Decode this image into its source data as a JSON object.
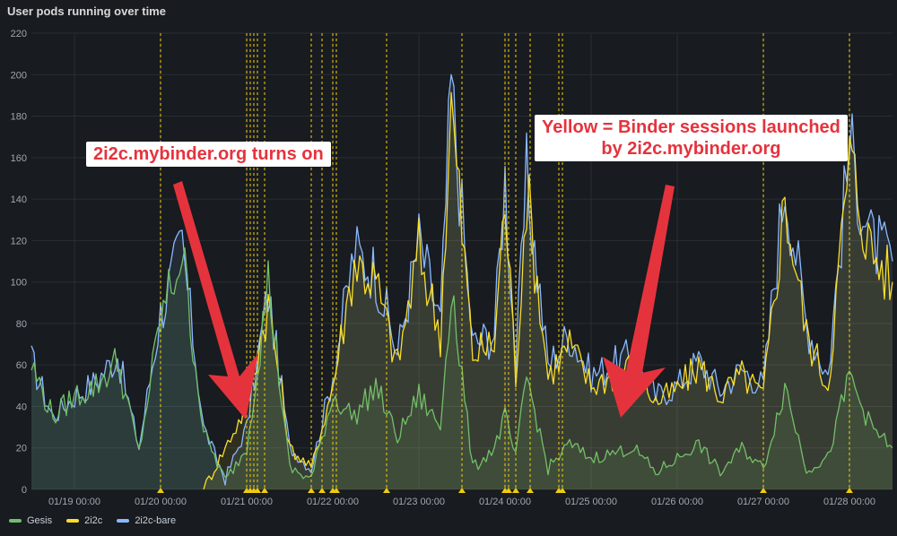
{
  "panel": {
    "title": "User pods running over time"
  },
  "annotations": [
    {
      "text": "2i2c.mybinder.org turns on"
    },
    {
      "text": "Yellow = Binder sessions launched\nby 2i2c.mybinder.org"
    }
  ],
  "legend": [
    {
      "label": "Gesis",
      "color": "#73bf69"
    },
    {
      "label": "2i2c",
      "color": "#fade2a"
    },
    {
      "label": "2i2c-bare",
      "color": "#8ab8ff"
    }
  ],
  "chart_data": {
    "type": "area",
    "x_start": "01/18 12:00",
    "x_end": "01/28 12:00",
    "x_ticks": [
      "01/19 00:00",
      "01/20 00:00",
      "01/21 00:00",
      "01/22 00:00",
      "01/23 00:00",
      "01/24 00:00",
      "01/25 00:00",
      "01/26 00:00",
      "01/27 00:00",
      "01/28 00:00"
    ],
    "ylim": [
      0,
      220
    ],
    "y_ticks": [
      0,
      20,
      40,
      60,
      80,
      100,
      120,
      140,
      160,
      180,
      200,
      220
    ],
    "grid": true,
    "legend_position": "bottom-left",
    "series": [
      {
        "name": "2i2c-bare",
        "color": "#8ab8ff",
        "points": [
          [
            "01/18 12:00",
            62
          ],
          [
            "01/18 18:00",
            35
          ],
          [
            "01/19 00:00",
            45
          ],
          [
            "01/19 06:00",
            52
          ],
          [
            "01/19 12:00",
            65
          ],
          [
            "01/19 18:00",
            20
          ],
          [
            "01/20 00:00",
            85
          ],
          [
            "01/20 06:00",
            118
          ],
          [
            "01/20 12:00",
            30
          ],
          [
            "01/20 18:00",
            5
          ],
          [
            "01/21 00:00",
            30
          ],
          [
            "01/21 06:00",
            95
          ],
          [
            "01/21 12:00",
            20
          ],
          [
            "01/21 18:00",
            10
          ],
          [
            "01/22 00:00",
            55
          ],
          [
            "01/22 06:00",
            115
          ],
          [
            "01/22 12:00",
            105
          ],
          [
            "01/22 18:00",
            65
          ],
          [
            "01/23 00:00",
            120
          ],
          [
            "01/23 06:00",
            80
          ],
          [
            "01/23 09:00",
            195
          ],
          [
            "01/23 15:00",
            70
          ],
          [
            "01/23 21:00",
            75
          ],
          [
            "01/24 00:00",
            150
          ],
          [
            "01/24 03:00",
            60
          ],
          [
            "01/24 06:00",
            150
          ],
          [
            "01/24 12:00",
            60
          ],
          [
            "01/24 18:00",
            75
          ],
          [
            "01/25 00:00",
            55
          ],
          [
            "01/25 12:00",
            65
          ],
          [
            "01/25 18:00",
            45
          ],
          [
            "01/26 00:00",
            50
          ],
          [
            "01/26 06:00",
            62
          ],
          [
            "01/26 12:00",
            48
          ],
          [
            "01/26 18:00",
            58
          ],
          [
            "01/27 00:00",
            50
          ],
          [
            "01/27 06:00",
            150
          ],
          [
            "01/27 12:00",
            80
          ],
          [
            "01/27 18:00",
            55
          ],
          [
            "01/28 00:00",
            165
          ],
          [
            "01/28 06:00",
            120
          ],
          [
            "01/28 12:00",
            110
          ]
        ]
      },
      {
        "name": "2i2c",
        "color": "#fade2a",
        "points": [
          [
            "01/20 12:00",
            0
          ],
          [
            "01/21 00:00",
            40
          ],
          [
            "01/21 06:00",
            90
          ],
          [
            "01/21 12:00",
            20
          ],
          [
            "01/21 18:00",
            10
          ],
          [
            "01/22 00:00",
            50
          ],
          [
            "01/22 06:00",
            110
          ],
          [
            "01/22 12:00",
            100
          ],
          [
            "01/22 18:00",
            60
          ],
          [
            "01/23 00:00",
            115
          ],
          [
            "01/23 06:00",
            75
          ],
          [
            "01/23 09:00",
            185
          ],
          [
            "01/23 15:00",
            65
          ],
          [
            "01/23 21:00",
            70
          ],
          [
            "01/24 00:00",
            140
          ],
          [
            "01/24 03:00",
            55
          ],
          [
            "01/24 06:00",
            145
          ],
          [
            "01/24 12:00",
            55
          ],
          [
            "01/24 18:00",
            70
          ],
          [
            "01/25 00:00",
            50
          ],
          [
            "01/25 12:00",
            60
          ],
          [
            "01/25 18:00",
            42
          ],
          [
            "01/26 00:00",
            48
          ],
          [
            "01/26 06:00",
            60
          ],
          [
            "01/26 12:00",
            45
          ],
          [
            "01/26 18:00",
            55
          ],
          [
            "01/27 00:00",
            45
          ],
          [
            "01/27 06:00",
            140
          ],
          [
            "01/27 12:00",
            75
          ],
          [
            "01/27 18:00",
            50
          ],
          [
            "01/28 00:00",
            160
          ],
          [
            "01/28 06:00",
            115
          ],
          [
            "01/28 12:00",
            100
          ]
        ]
      },
      {
        "name": "Gesis",
        "color": "#73bf69",
        "points": [
          [
            "01/18 12:00",
            60
          ],
          [
            "01/18 18:00",
            35
          ],
          [
            "01/19 00:00",
            45
          ],
          [
            "01/19 06:00",
            50
          ],
          [
            "01/19 12:00",
            62
          ],
          [
            "01/19 18:00",
            18
          ],
          [
            "01/20 00:00",
            82
          ],
          [
            "01/20 06:00",
            115
          ],
          [
            "01/20 12:00",
            28
          ],
          [
            "01/20 18:00",
            4
          ],
          [
            "01/21 00:00",
            20
          ],
          [
            "01/21 06:00",
            100
          ],
          [
            "01/21 12:00",
            10
          ],
          [
            "01/21 18:00",
            5
          ],
          [
            "01/22 00:00",
            45
          ],
          [
            "01/22 06:00",
            35
          ],
          [
            "01/22 12:00",
            50
          ],
          [
            "01/22 18:00",
            25
          ],
          [
            "01/23 00:00",
            45
          ],
          [
            "01/23 06:00",
            30
          ],
          [
            "01/23 09:00",
            100
          ],
          [
            "01/23 15:00",
            10
          ],
          [
            "01/23 21:00",
            20
          ],
          [
            "01/24 00:00",
            35
          ],
          [
            "01/24 03:00",
            15
          ],
          [
            "01/24 06:00",
            55
          ],
          [
            "01/24 12:00",
            10
          ],
          [
            "01/24 18:00",
            22
          ],
          [
            "01/25 00:00",
            15
          ],
          [
            "01/25 12:00",
            20
          ],
          [
            "01/25 18:00",
            8
          ],
          [
            "01/26 00:00",
            15
          ],
          [
            "01/26 06:00",
            22
          ],
          [
            "01/26 12:00",
            8
          ],
          [
            "01/26 18:00",
            20
          ],
          [
            "01/27 00:00",
            10
          ],
          [
            "01/27 06:00",
            50
          ],
          [
            "01/27 12:00",
            10
          ],
          [
            "01/27 18:00",
            15
          ],
          [
            "01/28 00:00",
            55
          ],
          [
            "01/28 06:00",
            30
          ],
          [
            "01/28 12:00",
            20
          ]
        ]
      }
    ],
    "annotation_markers": [
      "01/20 00:00",
      "01/21 00:00",
      "01/21 01:00",
      "01/21 02:00",
      "01/21 03:00",
      "01/21 05:00",
      "01/21 18:00",
      "01/21 21:00",
      "01/22 00:00",
      "01/22 01:00",
      "01/22 15:00",
      "01/23 12:00",
      "01/24 00:00",
      "01/24 01:00",
      "01/24 03:00",
      "01/24 07:00",
      "01/24 15:00",
      "01/24 16:00",
      "01/27 00:00",
      "01/28 00:00"
    ]
  }
}
